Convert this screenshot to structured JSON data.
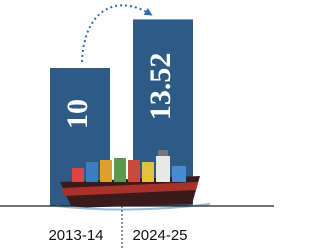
{
  "chart_data": {
    "type": "bar",
    "categories": [
      "2013-14",
      "2024-25"
    ],
    "values": [
      10,
      13.52
    ],
    "color": "#2d5b86"
  }
}
